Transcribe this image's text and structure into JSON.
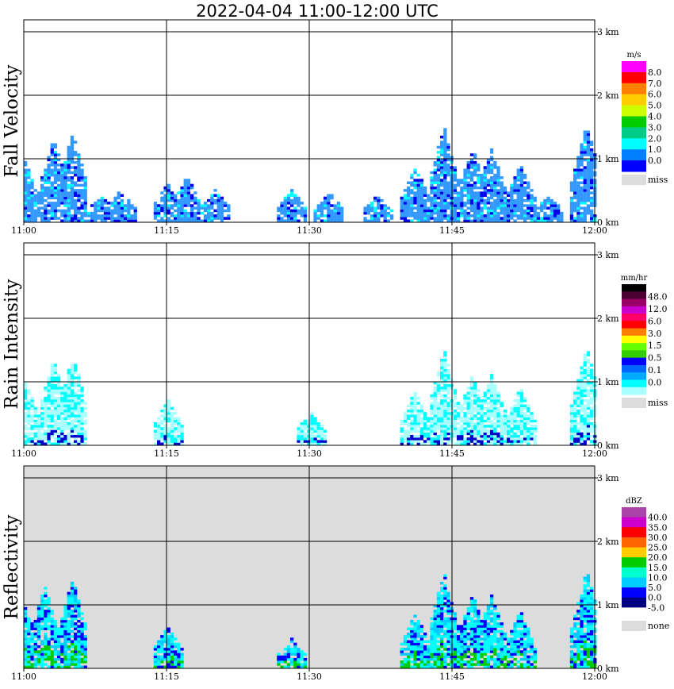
{
  "title": "2022-04-04   11:00-12:00 UTC",
  "x_ticks": [
    "11:00",
    "11:15",
    "11:30",
    "11:45",
    "12:00"
  ],
  "y_ticks": [
    "0 km",
    "1 km",
    "2 km",
    "3 km"
  ],
  "panels": [
    {
      "ylabel": "Fall Velocity",
      "unit": "m/s",
      "missing_label": "miss",
      "background": "#ffffff",
      "legend_values": [
        "8.0",
        "7.0",
        "6.0",
        "5.0",
        "4.0",
        "3.0",
        "2.0",
        "1.0",
        "0.0"
      ],
      "legend_colors": [
        "#ff00ff",
        "#ff0000",
        "#ff8000",
        "#ffcc00",
        "#ccff00",
        "#00cc00",
        "#00cc88",
        "#00ffff",
        "#0080ff",
        "#0000ff"
      ]
    },
    {
      "ylabel": "Rain Intensity",
      "unit": "mm/hr",
      "missing_label": "miss",
      "background": "#ffffff",
      "legend_values": [
        "48.0",
        "12.0",
        "6.0",
        "3.0",
        "1.5",
        "0.5",
        "0.1",
        "0.0"
      ],
      "legend_colors": [
        "#000000",
        "#4d0033",
        "#990066",
        "#cc00cc",
        "#ff0066",
        "#ff0000",
        "#ff8000",
        "#ffff00",
        "#66ff00",
        "#33cc00",
        "#0000ff",
        "#0066ff",
        "#00aaff",
        "#00ffff",
        "#aaffff"
      ]
    },
    {
      "ylabel": "Reflectivity",
      "unit": "dBZ",
      "missing_label": "none",
      "background": "#dcdcdc",
      "legend_values": [
        "40.0",
        "35.0",
        "30.0",
        "25.0",
        "20.0",
        "15.0",
        "10.0",
        "5.0",
        "0.0",
        "-5.0"
      ],
      "legend_colors": [
        "#aa44aa",
        "#cc00cc",
        "#ff0000",
        "#ff6600",
        "#ffcc00",
        "#00cc00",
        "#00ffcc",
        "#00ccff",
        "#0000ff",
        "#000080",
        "#ffffff"
      ]
    }
  ],
  "chart_data": [
    {
      "type": "heatmap",
      "title": "2022-04-04   11:00-12:00 UTC",
      "ylabel": "Fall Velocity",
      "units": "m/s",
      "x_range": [
        "11:00",
        "12:00"
      ],
      "y_range_km": [
        0,
        3
      ],
      "echo_tops_km": [
        {
          "time": "11:00",
          "top": 0.95
        },
        {
          "time": "11:03",
          "top": 1.3
        },
        {
          "time": "11:05",
          "top": 1.4
        },
        {
          "time": "11:08",
          "top": 0.4
        },
        {
          "time": "11:10",
          "top": 0.5
        },
        {
          "time": "11:15",
          "top": 0.6
        },
        {
          "time": "11:17",
          "top": 0.7
        },
        {
          "time": "11:20",
          "top": 0.5
        },
        {
          "time": "11:28",
          "top": 0.5
        },
        {
          "time": "11:32",
          "top": 0.45
        },
        {
          "time": "11:37",
          "top": 0.4
        },
        {
          "time": "11:41",
          "top": 0.85
        },
        {
          "time": "11:44",
          "top": 1.5
        },
        {
          "time": "11:47",
          "top": 1.15
        },
        {
          "time": "11:49",
          "top": 1.15
        },
        {
          "time": "11:52",
          "top": 0.9
        },
        {
          "time": "11:55",
          "top": 0.4
        },
        {
          "time": "11:59",
          "top": 1.55
        }
      ]
    },
    {
      "type": "heatmap",
      "ylabel": "Rain Intensity",
      "units": "mm/hr",
      "x_range": [
        "11:00",
        "12:00"
      ],
      "y_range_km": [
        0,
        3
      ],
      "echo_tops_km": [
        {
          "time": "11:00",
          "top": 1.0
        },
        {
          "time": "11:03",
          "top": 1.35
        },
        {
          "time": "11:05",
          "top": 1.4
        },
        {
          "time": "11:15",
          "top": 0.7
        },
        {
          "time": "11:30",
          "top": 0.5
        },
        {
          "time": "11:41",
          "top": 0.85
        },
        {
          "time": "11:44",
          "top": 1.5
        },
        {
          "time": "11:47",
          "top": 1.1
        },
        {
          "time": "11:49",
          "top": 1.1
        },
        {
          "time": "11:52",
          "top": 0.9
        },
        {
          "time": "11:59",
          "top": 1.55
        }
      ]
    },
    {
      "type": "heatmap",
      "ylabel": "Reflectivity",
      "units": "dBZ",
      "x_range": [
        "11:00",
        "12:00"
      ],
      "y_range_km": [
        0,
        3
      ],
      "echo_tops_km": [
        {
          "time": "11:00",
          "top": 0.95
        },
        {
          "time": "11:02",
          "top": 1.3
        },
        {
          "time": "11:05",
          "top": 1.4
        },
        {
          "time": "11:15",
          "top": 0.65
        },
        {
          "time": "11:28",
          "top": 0.45
        },
        {
          "time": "11:41",
          "top": 0.85
        },
        {
          "time": "11:44",
          "top": 1.5
        },
        {
          "time": "11:47",
          "top": 1.15
        },
        {
          "time": "11:49",
          "top": 1.15
        },
        {
          "time": "11:52",
          "top": 0.9
        },
        {
          "time": "11:59",
          "top": 1.55
        }
      ]
    }
  ]
}
